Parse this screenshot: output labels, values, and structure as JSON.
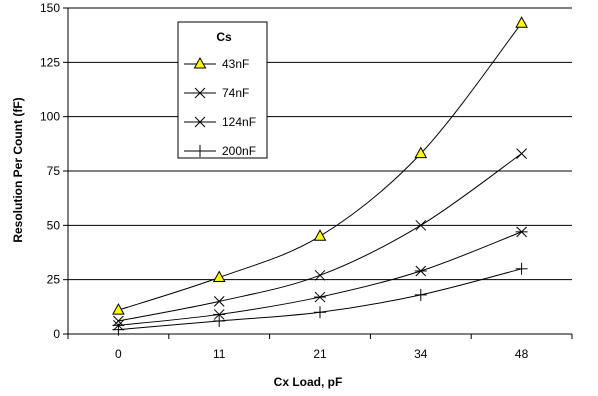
{
  "chart_data": {
    "type": "line",
    "title": "",
    "xlabel": "Cx Load, pF",
    "ylabel": "Resolution Per  Count (fF)",
    "categories": [
      "0",
      "11",
      "21",
      "34",
      "48"
    ],
    "ylim": [
      0,
      150
    ],
    "yticks": [
      0,
      25,
      50,
      75,
      100,
      125,
      150
    ],
    "grid": "horizontal",
    "legend": {
      "title": "Cs",
      "placement": "top-left"
    },
    "series": [
      {
        "name": "43nF",
        "marker": "triangle",
        "color": "#ffff00",
        "values": [
          11,
          26,
          45,
          83,
          143
        ]
      },
      {
        "name": "74nF",
        "marker": "x",
        "color": "#000000",
        "values": [
          6,
          15,
          27,
          50,
          83
        ]
      },
      {
        "name": "124nF",
        "marker": "asterisk",
        "color": "#000000",
        "values": [
          4,
          9,
          17,
          29,
          47
        ]
      },
      {
        "name": "200nF",
        "marker": "plus",
        "color": "#000000",
        "values": [
          2,
          6,
          10,
          18,
          30
        ]
      }
    ]
  }
}
